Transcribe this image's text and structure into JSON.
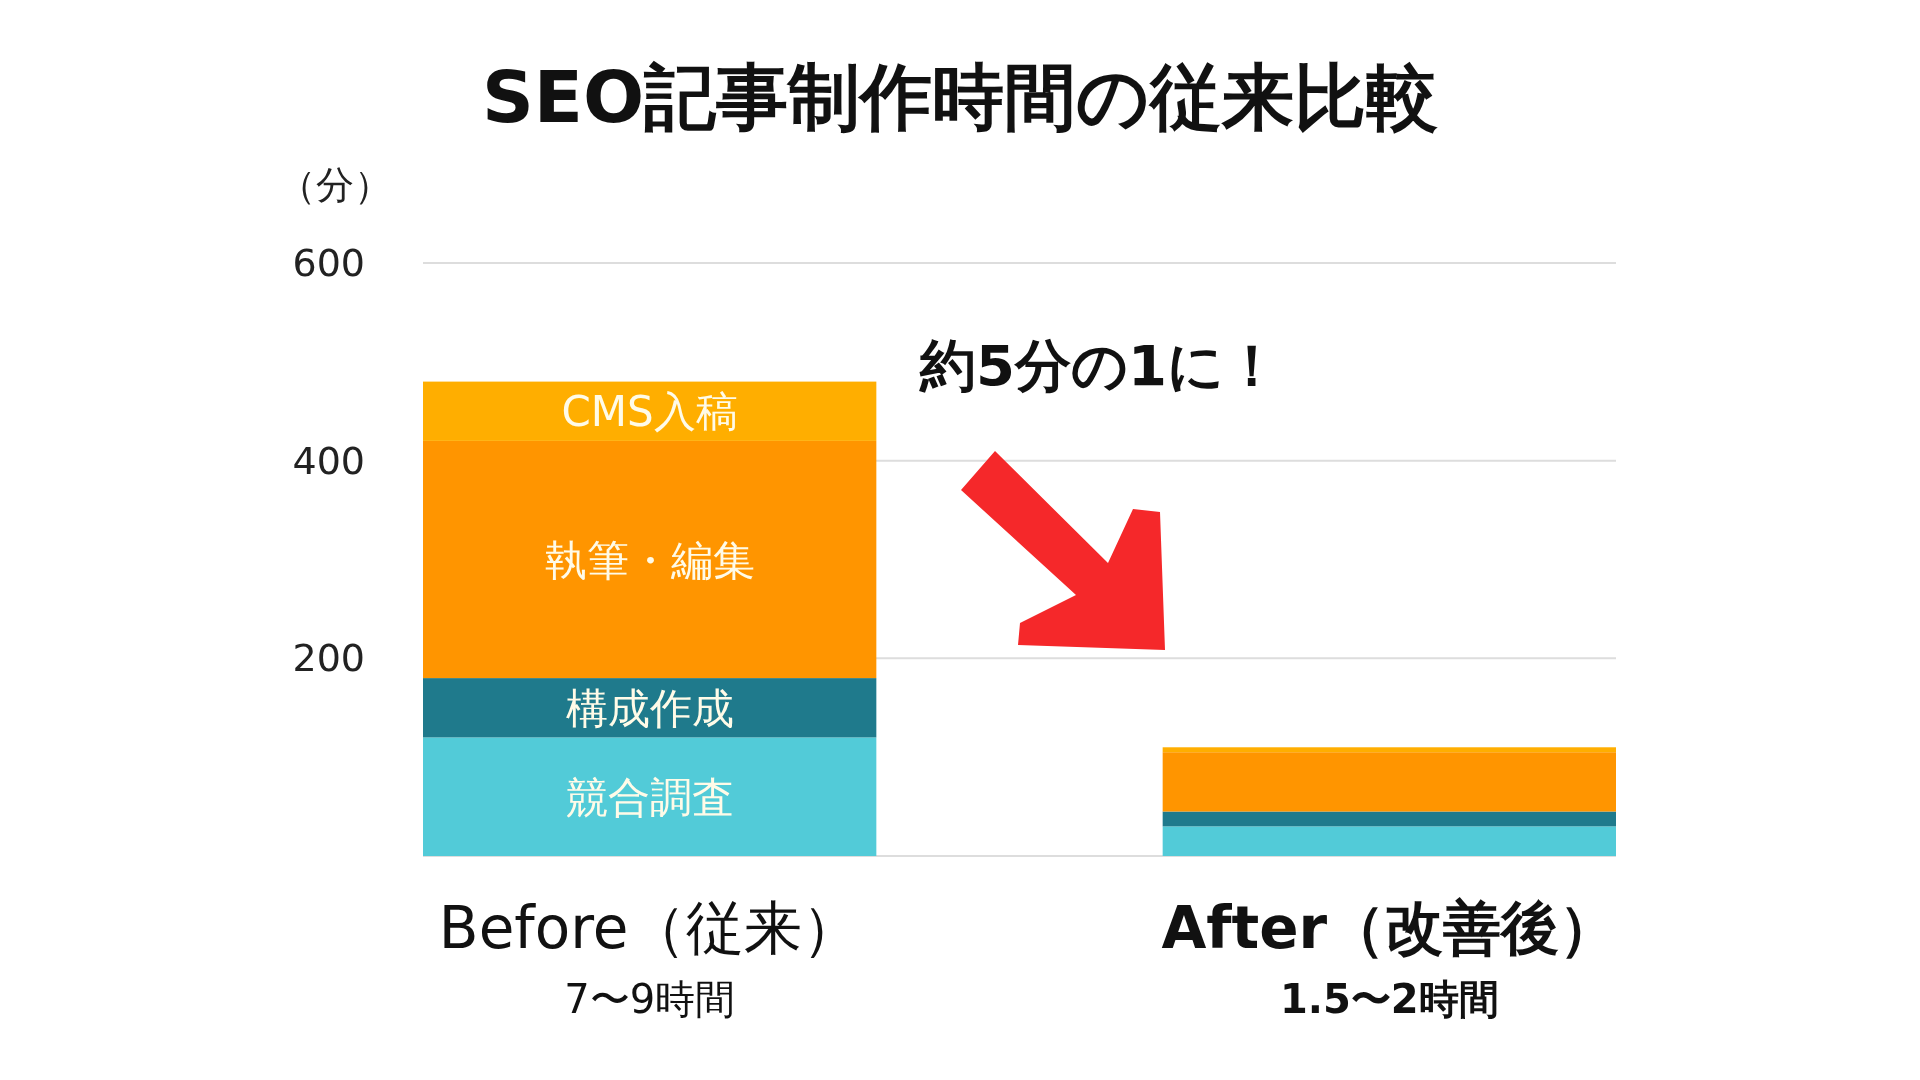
{
  "chart_data": {
    "type": "bar",
    "stacked": true,
    "title": "SEO記事制作時間の従来比較",
    "ylabel": "（分）",
    "categories": [
      "Before（従来）",
      "After（改善後）"
    ],
    "series": [
      {
        "name": "競合調査",
        "color": "#52cbd8",
        "values": [
          120,
          30
        ]
      },
      {
        "name": "構成作成",
        "color": "#1f7a8c",
        "values": [
          60,
          15
        ]
      },
      {
        "name": "執筆・編集",
        "color": "#ff9500",
        "values": [
          240,
          60
        ]
      },
      {
        "name": "CMS入稿",
        "color": "#ffae00",
        "values": [
          60,
          5
        ]
      }
    ],
    "ylim": [
      0,
      600
    ],
    "yticks": [
      {
        "value": 0,
        "label": null
      },
      200,
      400,
      600
    ],
    "grid": "y",
    "annotations": [
      "7〜9時間",
      "1.5〜2時間",
      "約5分の1に！"
    ]
  }
}
